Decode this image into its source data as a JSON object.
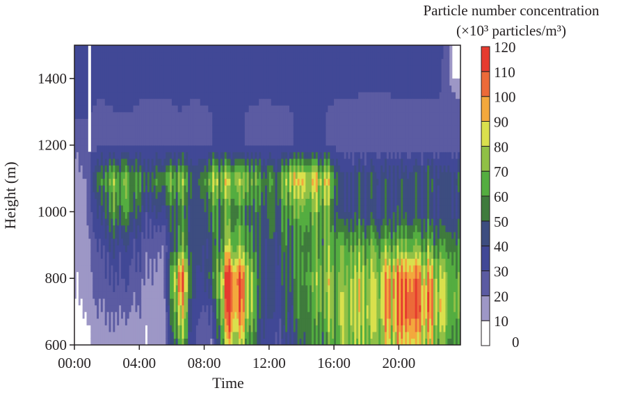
{
  "chart_data": {
    "type": "heatmap",
    "title": "",
    "xlabel": "Time",
    "ylabel": "Height (m)",
    "colorbar_title": [
      "Particle number concentration",
      "(×10³ particles/m³)"
    ],
    "xlim_hours": [
      0,
      23.8
    ],
    "ylim": [
      600,
      1500
    ],
    "x_ticks": [
      {
        "v": 0,
        "label": "00:00"
      },
      {
        "v": 4,
        "label": "04:00"
      },
      {
        "v": 8,
        "label": "08:00"
      },
      {
        "v": 12,
        "label": "12:00"
      },
      {
        "v": 16,
        "label": "16:00"
      },
      {
        "v": 20,
        "label": "20:00"
      }
    ],
    "y_ticks": [
      600,
      800,
      1000,
      1200,
      1400
    ],
    "levels": [
      0,
      10,
      20,
      30,
      40,
      50,
      60,
      70,
      80,
      90,
      100,
      110,
      120
    ],
    "level_colors": [
      "#ffffff",
      "#9d97c6",
      "#5b5ba2",
      "#414896",
      "#3d4d80",
      "#3f7b3d",
      "#54ad40",
      "#90c046",
      "#dae04d",
      "#f3a83d",
      "#ec6a39",
      "#e63b2f"
    ],
    "hours": [
      0.5,
      1.5,
      2.5,
      3.5,
      4.5,
      5.5,
      6.5,
      7.5,
      8.5,
      9.5,
      10.5,
      11.5,
      12.5,
      13.5,
      14.5,
      15.5,
      16.5,
      17.5,
      18.5,
      19.5,
      20.5,
      21.5,
      22.5,
      23.5
    ],
    "heights": [
      600,
      700,
      800,
      900,
      1000,
      1100,
      1200,
      1300,
      1400,
      1500
    ],
    "values": [
      [
        5,
        15,
        15,
        12,
        10,
        15,
        70,
        25,
        20,
        85,
        70,
        40,
        30,
        45,
        55,
        60,
        70,
        75,
        70,
        80,
        90,
        80,
        70,
        55
      ],
      [
        8,
        20,
        22,
        20,
        15,
        15,
        90,
        30,
        30,
        110,
        90,
        45,
        35,
        50,
        60,
        70,
        75,
        80,
        80,
        95,
        110,
        100,
        85,
        65
      ],
      [
        12,
        25,
        30,
        30,
        18,
        18,
        110,
        35,
        50,
        115,
        95,
        45,
        40,
        55,
        65,
        75,
        70,
        80,
        75,
        95,
        105,
        95,
        80,
        65
      ],
      [
        15,
        30,
        40,
        35,
        25,
        20,
        65,
        40,
        45,
        75,
        65,
        45,
        45,
        55,
        60,
        65,
        65,
        65,
        65,
        65,
        70,
        65,
        60,
        55
      ],
      [
        15,
        40,
        60,
        55,
        35,
        40,
        55,
        40,
        55,
        60,
        55,
        50,
        50,
        65,
        65,
        70,
        40,
        45,
        40,
        45,
        45,
        45,
        40,
        40
      ],
      [
        15,
        55,
        70,
        65,
        50,
        60,
        75,
        45,
        75,
        80,
        75,
        60,
        55,
        90,
        85,
        85,
        40,
        45,
        45,
        45,
        45,
        50,
        45,
        45
      ],
      [
        25,
        28,
        28,
        30,
        28,
        28,
        30,
        28,
        30,
        30,
        30,
        28,
        28,
        30,
        30,
        30,
        26,
        26,
        26,
        26,
        26,
        26,
        26,
        26
      ],
      [
        32,
        28,
        30,
        30,
        28,
        28,
        30,
        28,
        30,
        30,
        30,
        28,
        28,
        30,
        30,
        30,
        26,
        26,
        26,
        27,
        27,
        27,
        27,
        27
      ],
      [
        35,
        33,
        33,
        33,
        32,
        32,
        33,
        33,
        34,
        34,
        34,
        34,
        35,
        35,
        36,
        36,
        34,
        34,
        33,
        33,
        33,
        33,
        33,
        12
      ],
      [
        35,
        35,
        35,
        35,
        35,
        35,
        35,
        35,
        36,
        36,
        36,
        36,
        37,
        37,
        38,
        38,
        36,
        36,
        35,
        35,
        35,
        35,
        35,
        12
      ]
    ]
  }
}
